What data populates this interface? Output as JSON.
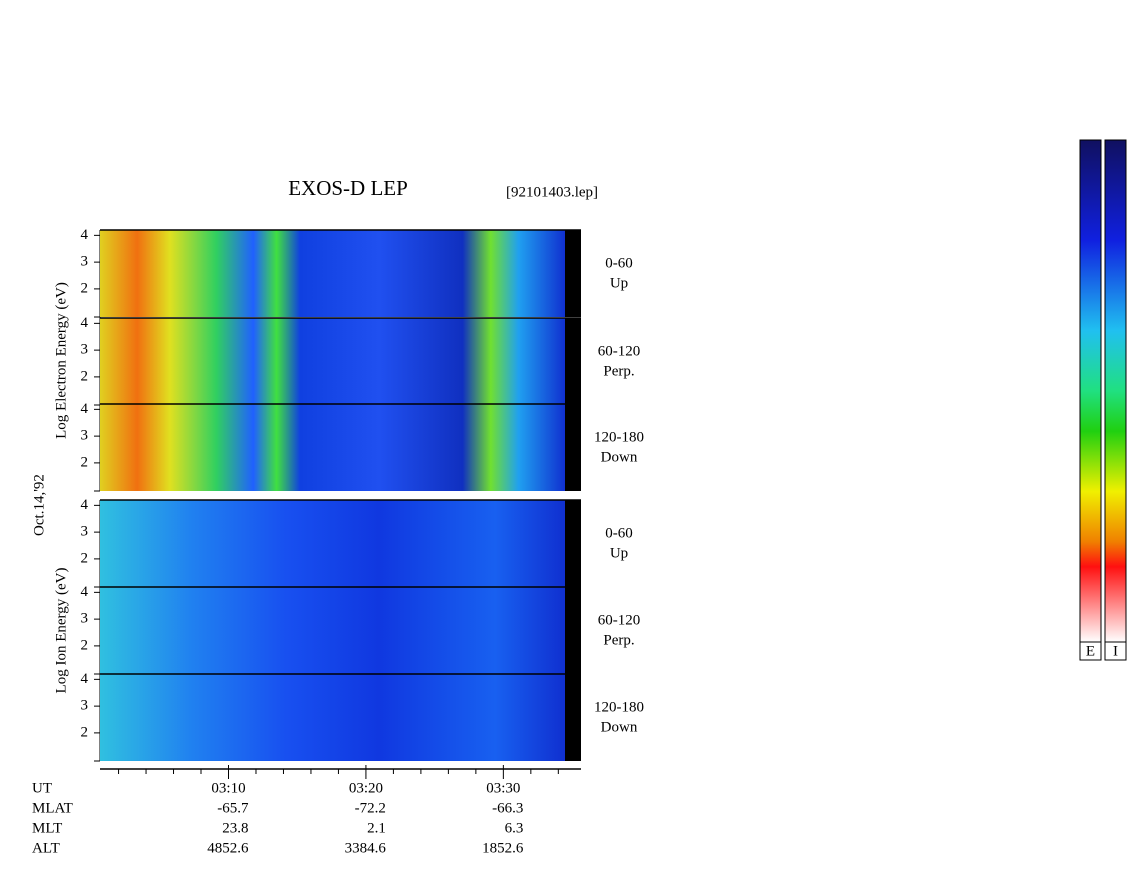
{
  "title": "EXOS-D LEP",
  "file": "[92101403.lep]",
  "date": "Oct.14,'92",
  "groups": [
    {
      "ylabel": "Log Electron Energy (eV)",
      "panels": [
        {
          "angle": "0-60",
          "dir": "Up"
        },
        {
          "angle": "60-120",
          "dir": "Perp."
        },
        {
          "angle": "120-180",
          "dir": "Down"
        }
      ]
    },
    {
      "ylabel": "Log Ion Energy (eV)",
      "panels": [
        {
          "angle": "0-60",
          "dir": "Up"
        },
        {
          "angle": "60-120",
          "dir": "Perp."
        },
        {
          "angle": "120-180",
          "dir": "Down"
        }
      ]
    }
  ],
  "ylim": [
    0.95,
    4.2
  ],
  "yticks": [
    2,
    3,
    4
  ],
  "xlim": [
    0.65,
    35.65
  ],
  "xticks": [
    {
      "value": 10,
      "label": "03:10"
    },
    {
      "value": 20,
      "label": "03:20"
    },
    {
      "value": 30,
      "label": "03:30"
    }
  ],
  "xminorticks": [
    2,
    4,
    6,
    8,
    12,
    14,
    16,
    18,
    22,
    24,
    26,
    28,
    32,
    34
  ],
  "orbit_rows": [
    {
      "label": "UT",
      "values": []
    },
    {
      "label": "MLAT",
      "values": [
        -65.7,
        -72.2,
        -66.3
      ]
    },
    {
      "label": "MLT",
      "values": [
        23.8,
        2.1,
        6.3
      ]
    },
    {
      "label": "ALT",
      "values": [
        4852.6,
        3384.6,
        1852.6
      ]
    }
  ],
  "colorbars": [
    "E",
    "I"
  ]
}
